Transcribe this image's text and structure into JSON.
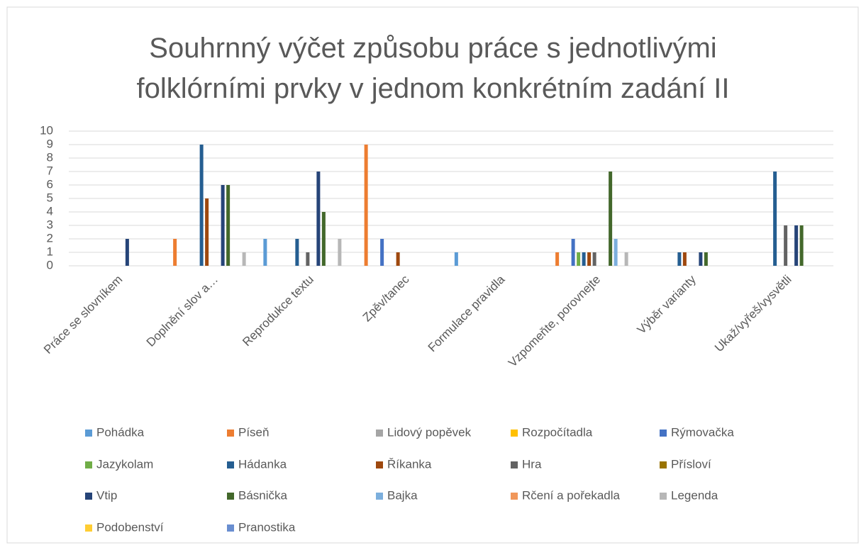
{
  "chart_data": {
    "type": "bar",
    "title": "Souhrnný výčet způsobu práce s jednotlivými\nfolklórními prvky v jednom konkrétním zadání II",
    "categories": [
      "Práce se slovníkem",
      "Doplnění slov a…",
      "Reprodukce textu",
      "Zpěv/tanec",
      "Formulace pravidla",
      "Vzpomeňte, porovnejte",
      "Výběr varianty",
      "Ukaž/vyřeš/vysvětli"
    ],
    "series": [
      {
        "name": "Pohádka",
        "color": "#5b9bd5",
        "values": [
          0,
          0,
          2,
          0,
          1,
          0,
          0,
          0
        ]
      },
      {
        "name": "Píseň",
        "color": "#ed7d31",
        "values": [
          0,
          2,
          0,
          9,
          0,
          1,
          0,
          0
        ]
      },
      {
        "name": "Lidový popěvek",
        "color": "#a5a5a5",
        "values": [
          0,
          0,
          0,
          0,
          0,
          0,
          0,
          0
        ]
      },
      {
        "name": "Rozpočítadla",
        "color": "#ffc000",
        "values": [
          0,
          0,
          0,
          0,
          0,
          0,
          0,
          0
        ]
      },
      {
        "name": "Rýmovačka",
        "color": "#4472c4",
        "values": [
          0,
          0,
          0,
          2,
          0,
          2,
          0,
          0
        ]
      },
      {
        "name": "Jazykolam",
        "color": "#70ad47",
        "values": [
          0,
          0,
          0,
          0,
          0,
          1,
          0,
          0
        ]
      },
      {
        "name": "Hádanka",
        "color": "#255e91",
        "values": [
          0,
          9,
          2,
          0,
          0,
          1,
          1,
          7
        ]
      },
      {
        "name": "Říkanka",
        "color": "#9e480e",
        "values": [
          0,
          5,
          0,
          1,
          0,
          1,
          1,
          0
        ]
      },
      {
        "name": "Hra",
        "color": "#636363",
        "values": [
          0,
          0,
          1,
          0,
          0,
          1,
          0,
          3
        ]
      },
      {
        "name": "Přísloví",
        "color": "#997300",
        "values": [
          0,
          0,
          0,
          0,
          0,
          0,
          0,
          0
        ]
      },
      {
        "name": "Vtip",
        "color": "#264478",
        "values": [
          2,
          6,
          7,
          0,
          0,
          0,
          1,
          3
        ]
      },
      {
        "name": "Básnička",
        "color": "#43682b",
        "values": [
          0,
          6,
          4,
          0,
          0,
          7,
          1,
          3
        ]
      },
      {
        "name": "Bajka",
        "color": "#7cafdd",
        "values": [
          0,
          0,
          0,
          0,
          0,
          2,
          0,
          0
        ]
      },
      {
        "name": "Rčení a pořekadla",
        "color": "#f1975a",
        "values": [
          0,
          0,
          0,
          0,
          0,
          0,
          0,
          0
        ]
      },
      {
        "name": "Legenda",
        "color": "#b7b7b7",
        "values": [
          0,
          1,
          2,
          0,
          0,
          1,
          0,
          0
        ]
      },
      {
        "name": "Podobenství",
        "color": "#ffcd33",
        "values": [
          0,
          0,
          0,
          0,
          0,
          0,
          0,
          0
        ]
      },
      {
        "name": "Pranostika",
        "color": "#698ed0",
        "values": [
          0,
          0,
          0,
          0,
          0,
          0,
          0,
          0
        ]
      }
    ],
    "ylim": [
      0,
      10
    ],
    "yticks": [
      0,
      1,
      2,
      3,
      4,
      5,
      6,
      7,
      8,
      9,
      10
    ],
    "grid": true,
    "legend": "bottom"
  }
}
